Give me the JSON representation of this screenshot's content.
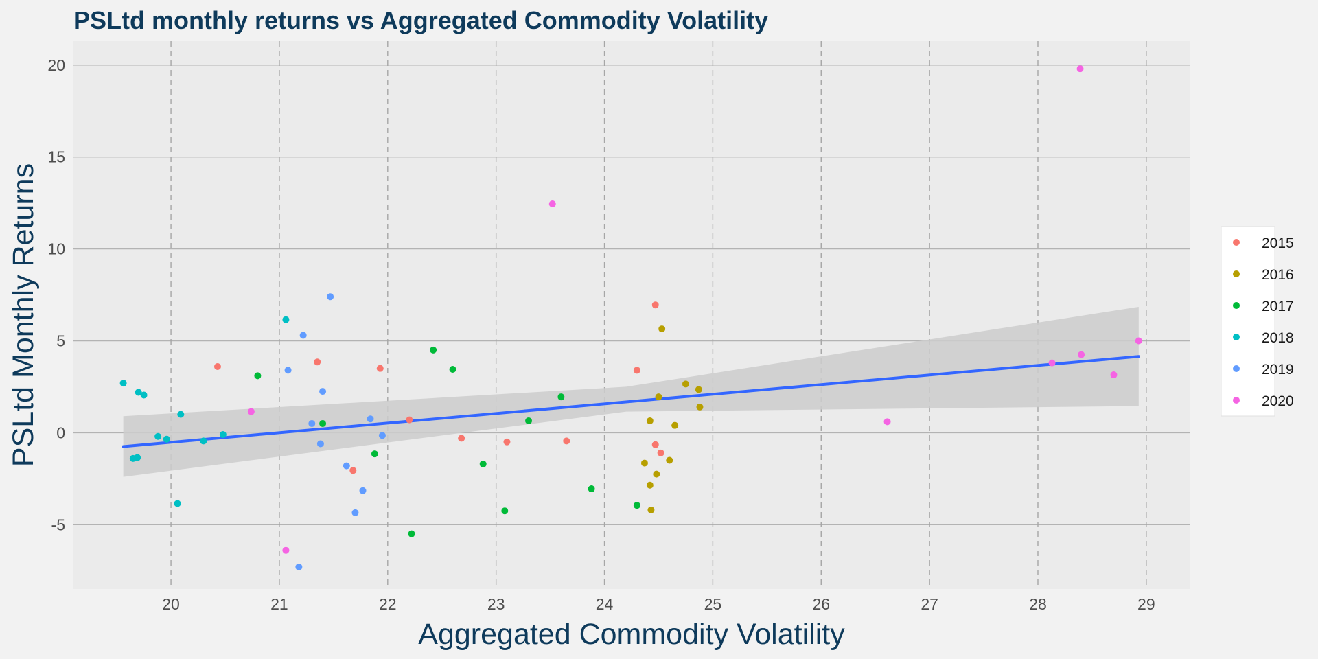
{
  "chart_data": {
    "type": "scatter",
    "title": "PSLtd monthly returns vs Aggregated Commodity Volatility",
    "xlabel": "Aggregated Commodity Volatility",
    "ylabel": "PSLtd Monthly Returns",
    "xlim": [
      19.1,
      29.4
    ],
    "ylim": [
      -8.5,
      21.3
    ],
    "x_ticks": [
      20,
      21,
      22,
      23,
      24,
      25,
      26,
      27,
      28,
      29
    ],
    "y_ticks": [
      -5,
      0,
      5,
      10,
      15,
      20
    ],
    "grid": true,
    "legend_position": "right",
    "series": [
      {
        "name": "2015",
        "color": "#f8766d",
        "points": [
          [
            20.43,
            3.6
          ],
          [
            21.35,
            3.85
          ],
          [
            21.68,
            -2.05
          ],
          [
            21.93,
            3.5
          ],
          [
            22.2,
            0.7
          ],
          [
            22.68,
            -0.3
          ],
          [
            23.1,
            -0.5
          ],
          [
            23.65,
            -0.45
          ],
          [
            24.3,
            3.4
          ],
          [
            24.47,
            6.95
          ],
          [
            24.47,
            -0.65
          ],
          [
            24.52,
            -1.1
          ]
        ]
      },
      {
        "name": "2016",
        "color": "#b79f00",
        "points": [
          [
            24.37,
            -1.65
          ],
          [
            24.42,
            0.65
          ],
          [
            24.42,
            -2.85
          ],
          [
            24.43,
            -4.2
          ],
          [
            24.48,
            -2.25
          ],
          [
            24.5,
            1.95
          ],
          [
            24.53,
            5.65
          ],
          [
            24.6,
            -1.5
          ],
          [
            24.65,
            0.4
          ],
          [
            24.75,
            2.65
          ],
          [
            24.87,
            2.35
          ],
          [
            24.88,
            1.4
          ]
        ]
      },
      {
        "name": "2017",
        "color": "#00ba38",
        "points": [
          [
            20.8,
            3.1
          ],
          [
            21.4,
            0.5
          ],
          [
            21.88,
            -1.15
          ],
          [
            22.22,
            -5.5
          ],
          [
            22.42,
            4.5
          ],
          [
            22.6,
            3.45
          ],
          [
            22.88,
            -1.7
          ],
          [
            23.08,
            -4.25
          ],
          [
            23.3,
            0.65
          ],
          [
            23.6,
            1.95
          ],
          [
            23.88,
            -3.05
          ],
          [
            24.3,
            -3.95
          ]
        ]
      },
      {
        "name": "2018",
        "color": "#00bfc4",
        "points": [
          [
            19.56,
            2.7
          ],
          [
            19.65,
            -1.4
          ],
          [
            19.69,
            -1.35
          ],
          [
            19.7,
            2.2
          ],
          [
            19.75,
            2.05
          ],
          [
            19.88,
            -0.2
          ],
          [
            19.96,
            -0.35
          ],
          [
            20.06,
            -3.85
          ],
          [
            20.09,
            1.0
          ],
          [
            20.3,
            -0.45
          ],
          [
            20.48,
            -0.1
          ],
          [
            21.06,
            6.15
          ]
        ]
      },
      {
        "name": "2019",
        "color": "#619cff",
        "points": [
          [
            21.08,
            3.4
          ],
          [
            21.18,
            -7.3
          ],
          [
            21.22,
            5.3
          ],
          [
            21.3,
            0.5
          ],
          [
            21.38,
            -0.6
          ],
          [
            21.4,
            2.25
          ],
          [
            21.47,
            7.4
          ],
          [
            21.62,
            -1.8
          ],
          [
            21.7,
            -4.35
          ],
          [
            21.77,
            -3.15
          ],
          [
            21.84,
            0.75
          ],
          [
            21.95,
            -0.15
          ]
        ]
      },
      {
        "name": "2020",
        "color": "#f564e3",
        "points": [
          [
            20.74,
            1.15
          ],
          [
            21.06,
            -6.4
          ],
          [
            23.52,
            12.45
          ],
          [
            26.61,
            0.6
          ],
          [
            28.13,
            3.8
          ],
          [
            28.39,
            19.8
          ],
          [
            28.4,
            4.25
          ],
          [
            28.7,
            3.15
          ],
          [
            28.93,
            5.0
          ]
        ]
      }
    ],
    "trend_line": {
      "color": "#3366ff",
      "start": [
        19.56,
        -0.75
      ],
      "end": [
        28.93,
        4.15
      ]
    },
    "confidence_band": {
      "color": "#cccccc",
      "upper": [
        [
          19.56,
          0.9
        ],
        [
          24.2,
          2.5
        ],
        [
          28.93,
          6.85
        ]
      ],
      "lower": [
        [
          19.56,
          -2.4
        ],
        [
          24.2,
          1.15
        ],
        [
          28.93,
          1.45
        ]
      ]
    }
  }
}
